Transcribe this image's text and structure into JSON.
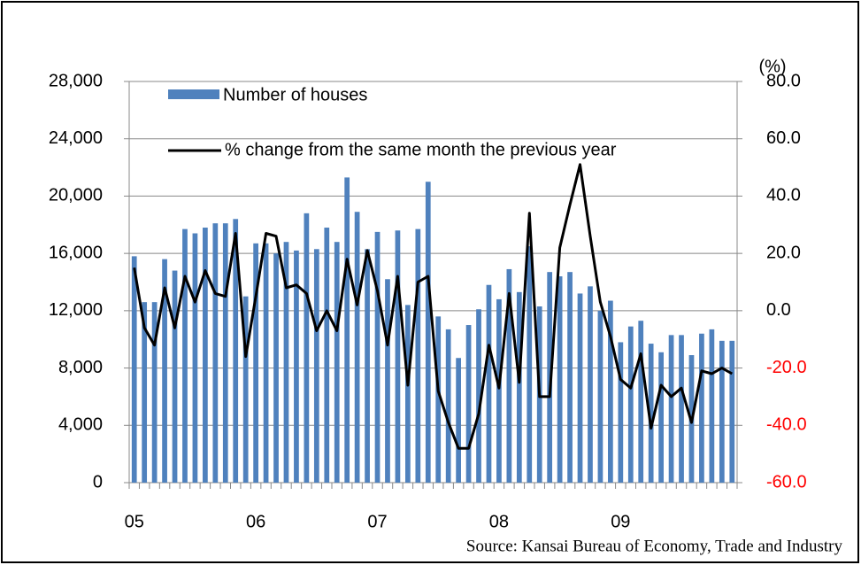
{
  "chart_data": {
    "type": "bar_line",
    "categories": [
      "05",
      null,
      null,
      null,
      null,
      null,
      null,
      null,
      null,
      null,
      null,
      null,
      "06",
      null,
      null,
      null,
      null,
      null,
      null,
      null,
      null,
      null,
      null,
      null,
      "07",
      null,
      null,
      null,
      null,
      null,
      null,
      null,
      null,
      null,
      null,
      null,
      "08",
      null,
      null,
      null,
      null,
      null,
      null,
      null,
      null,
      null,
      null,
      null,
      "09",
      null,
      null,
      null,
      null,
      null,
      null,
      null,
      null,
      null,
      null,
      null
    ],
    "series": [
      {
        "name": "Number of houses",
        "type": "bar",
        "color": "#4f81bd",
        "values": [
          15800,
          12600,
          12600,
          15600,
          14800,
          17700,
          17400,
          17800,
          18100,
          18100,
          18400,
          13000,
          16700,
          16700,
          16000,
          16800,
          16200,
          18800,
          16300,
          17800,
          16800,
          21300,
          18900,
          16300,
          17500,
          14200,
          17600,
          12400,
          17700,
          21000,
          11600,
          10700,
          8700,
          11000,
          12100,
          13800,
          12800,
          14900,
          13300,
          16500,
          12300,
          14700,
          14400,
          14700,
          13200,
          13700,
          12000,
          12700,
          9800,
          10900,
          11300,
          9700,
          9100,
          10300,
          10300,
          8900,
          10400,
          10700,
          9900,
          9900
        ]
      },
      {
        "name": "% change from the same month the previous year",
        "type": "line",
        "axis": "y2",
        "color": "#000000",
        "values": [
          15,
          -6,
          -12,
          8,
          -6,
          12,
          3,
          14,
          6,
          5,
          27,
          -16,
          5,
          27,
          26,
          8,
          9,
          6,
          -7,
          0,
          -7,
          18,
          2,
          21,
          7,
          -12,
          12,
          -26,
          10,
          12,
          -28,
          -39,
          -48,
          -48,
          -36,
          -12,
          -27,
          6,
          -25,
          34,
          -30,
          -30,
          22,
          37,
          51,
          26,
          3,
          -9,
          -24,
          -27,
          -15,
          -41,
          -26,
          -30,
          -27,
          -39,
          -21,
          -22,
          -20,
          -22
        ]
      }
    ],
    "ylim": [
      0,
      28000
    ],
    "yticks": [
      0,
      {
        "value": 4000,
        "label": "4,000"
      },
      {
        "value": 8000,
        "label": "8,000"
      },
      {
        "value": 12000,
        "label": "12,000"
      },
      {
        "value": 16000,
        "label": "16,000"
      },
      {
        "value": 20000,
        "label": "20,000"
      },
      {
        "value": 24000,
        "label": "24,000"
      },
      {
        "value": 28000,
        "label": "28,000"
      }
    ],
    "y2lim": [
      -60,
      80
    ],
    "y2ticks": [
      {
        "value": -60,
        "label": "-60.0"
      },
      {
        "value": -40,
        "label": "-40.0"
      },
      {
        "value": -20,
        "label": "-20.0"
      },
      {
        "value": 0,
        "label": "0.0"
      },
      {
        "value": 20,
        "label": "20.0"
      },
      {
        "value": 40,
        "label": "40.0"
      },
      {
        "value": 60,
        "label": "60.0"
      },
      {
        "value": 80,
        "label": "80.0"
      }
    ],
    "y2_unit": "(%)",
    "y2_negative_color": "#ff0000",
    "grid": true,
    "source": "Source: Kansai Bureau of Economy, Trade and Industry"
  }
}
